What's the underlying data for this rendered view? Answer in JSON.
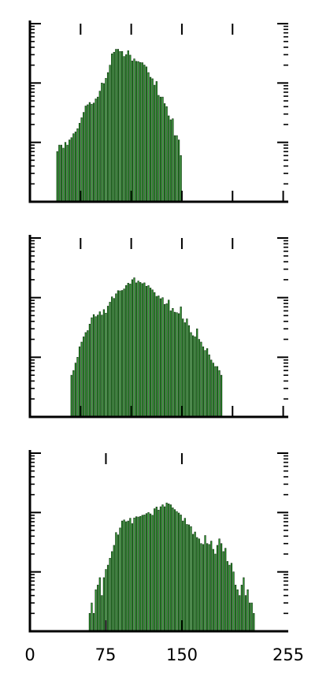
{
  "colors": {
    "bar_fill": "#2ca02c",
    "bar_edge": "#0b2a0b",
    "axis": "#000000"
  },
  "chart_data": [
    {
      "type": "bar",
      "yscale": "log",
      "xlim": [
        0,
        255
      ],
      "ylim_decades": [
        0,
        3
      ],
      "grid": false,
      "series": [
        {
          "x": [
            27,
            29,
            31,
            33,
            35,
            37,
            39,
            41,
            43,
            45,
            47,
            49,
            51,
            53,
            55,
            57,
            59,
            61,
            63,
            65,
            67,
            69,
            71,
            73,
            75,
            77,
            79,
            81,
            83,
            85,
            87,
            89,
            91,
            93,
            95,
            97,
            99,
            101,
            103,
            105,
            107,
            109,
            111,
            113,
            115,
            117,
            119,
            121,
            123,
            125,
            127,
            129,
            131,
            133,
            135,
            137,
            139,
            141,
            143,
            145,
            147,
            149
          ],
          "values": [
            7,
            9,
            9,
            8,
            10,
            9,
            11,
            12,
            14,
            15,
            17,
            21,
            26,
            32,
            41,
            43,
            47,
            44,
            46,
            54,
            58,
            73,
            100,
            98,
            120,
            150,
            200,
            310,
            330,
            370,
            370,
            340,
            340,
            280,
            300,
            350,
            295,
            235,
            255,
            232,
            230,
            222,
            220,
            201,
            187,
            150,
            125,
            118,
            92,
            106,
            62,
            58,
            58,
            45,
            40,
            28,
            24,
            25,
            13,
            13,
            11,
            6
          ]
        }
      ]
    },
    {
      "type": "bar",
      "yscale": "log",
      "xlim": [
        0,
        255
      ],
      "ylim_decades": [
        0,
        3
      ],
      "grid": false,
      "series": [
        {
          "x": [
            41,
            43,
            45,
            47,
            49,
            51,
            53,
            55,
            57,
            59,
            61,
            63,
            65,
            67,
            69,
            71,
            73,
            75,
            77,
            79,
            81,
            83,
            85,
            87,
            89,
            91,
            93,
            95,
            97,
            99,
            101,
            103,
            105,
            107,
            109,
            111,
            113,
            115,
            117,
            119,
            121,
            123,
            125,
            127,
            129,
            131,
            133,
            135,
            137,
            139,
            141,
            143,
            145,
            147,
            149,
            151,
            153,
            155,
            157,
            159,
            161,
            163,
            165,
            167,
            169,
            171,
            173,
            175,
            177,
            179,
            181,
            183,
            185,
            187,
            189
          ],
          "values": [
            5,
            6,
            8,
            10,
            15,
            18,
            22,
            26,
            28,
            36,
            46,
            52,
            48,
            51,
            58,
            51,
            63,
            55,
            72,
            84,
            103,
            97,
            116,
            131,
            130,
            132,
            140,
            160,
            175,
            169,
            200,
            215,
            177,
            190,
            180,
            172,
            177,
            155,
            159,
            145,
            135,
            122,
            105,
            107,
            96,
            100,
            77,
            79,
            91,
            60,
            66,
            57,
            56,
            54,
            70,
            44,
            38,
            44,
            34,
            26,
            23,
            22,
            30,
            20,
            18,
            15,
            13,
            14,
            11,
            9,
            8,
            7,
            7,
            6,
            5
          ]
        }
      ]
    },
    {
      "type": "bar",
      "yscale": "log",
      "xlim": [
        0,
        255
      ],
      "ylim_decades": [
        0,
        3
      ],
      "grid": false,
      "series": [
        {
          "x": [
            59,
            61,
            63,
            65,
            67,
            69,
            71,
            73,
            75,
            77,
            79,
            81,
            83,
            85,
            87,
            89,
            91,
            93,
            95,
            97,
            99,
            101,
            103,
            105,
            107,
            109,
            111,
            113,
            115,
            117,
            119,
            121,
            123,
            125,
            127,
            129,
            131,
            133,
            135,
            137,
            139,
            141,
            143,
            145,
            147,
            149,
            151,
            153,
            155,
            157,
            159,
            161,
            163,
            165,
            167,
            169,
            171,
            173,
            175,
            177,
            179,
            181,
            183,
            185,
            187,
            189,
            191,
            193,
            195,
            197,
            199,
            201,
            203,
            205,
            207,
            209,
            211,
            213,
            215,
            217,
            219,
            221
          ],
          "values": [
            2,
            3,
            2,
            5,
            6,
            8,
            4,
            8,
            11,
            13,
            17,
            22,
            28,
            46,
            42,
            55,
            72,
            75,
            70,
            72,
            80,
            65,
            81,
            85,
            84,
            86,
            90,
            91,
            96,
            100,
            95,
            90,
            116,
            124,
            110,
            125,
            135,
            125,
            145,
            140,
            135,
            120,
            112,
            104,
            98,
            91,
            72,
            80,
            63,
            62,
            58,
            43,
            47,
            38,
            36,
            30,
            29,
            41,
            30,
            29,
            33,
            24,
            20,
            28,
            36,
            30,
            22,
            25,
            15,
            13,
            14,
            10,
            6,
            5,
            4,
            6,
            8,
            4,
            5,
            3,
            3,
            2
          ]
        }
      ]
    }
  ],
  "axis_labels": {
    "x_ticks": [
      "0",
      "75",
      "150",
      "255"
    ]
  }
}
